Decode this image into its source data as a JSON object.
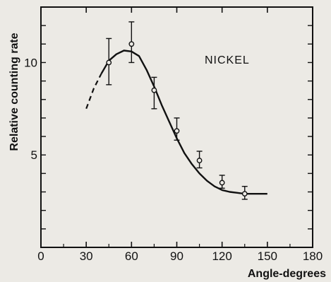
{
  "chart_data": {
    "type": "scatter",
    "title": "",
    "xlabel": "Angle-degrees",
    "ylabel": "Relative counting rate",
    "xlim": [
      0,
      180
    ],
    "ylim": [
      0,
      13
    ],
    "x_ticks": [
      0,
      30,
      60,
      90,
      120,
      150,
      180
    ],
    "x_tick_labels": [
      "0",
      "30",
      "60",
      "90",
      "120",
      "150",
      "180"
    ],
    "y_ticks": [
      5,
      10
    ],
    "y_tick_labels": [
      "5",
      "10"
    ],
    "grid": false,
    "annotation": "NICKEL",
    "series": [
      {
        "marker": "open-circle",
        "points": [
          {
            "x": 45,
            "y": 10.0,
            "err_low": 8.8,
            "err_high": 11.3
          },
          {
            "x": 60,
            "y": 11.0,
            "err_low": 10.0,
            "err_high": 12.2
          },
          {
            "x": 75,
            "y": 8.5,
            "err_low": 7.5,
            "err_high": 9.2
          },
          {
            "x": 90,
            "y": 6.3,
            "err_low": 5.8,
            "err_high": 7.0
          },
          {
            "x": 105,
            "y": 4.7,
            "err_low": 4.3,
            "err_high": 5.2
          },
          {
            "x": 120,
            "y": 3.5,
            "err_low": 3.2,
            "err_high": 3.9
          },
          {
            "x": 135,
            "y": 2.9,
            "err_low": 2.6,
            "err_high": 3.3
          }
        ]
      }
    ],
    "fit_curve": {
      "dashed": [
        [
          30,
          7.5
        ],
        [
          35,
          8.6
        ],
        [
          40,
          9.4
        ]
      ],
      "solid": [
        [
          40,
          9.4
        ],
        [
          45,
          10.1
        ],
        [
          50,
          10.45
        ],
        [
          55,
          10.65
        ],
        [
          60,
          10.6
        ],
        [
          65,
          10.35
        ],
        [
          70,
          9.6
        ],
        [
          75,
          8.7
        ],
        [
          80,
          7.7
        ],
        [
          85,
          6.8
        ],
        [
          90,
          5.9
        ],
        [
          95,
          5.1
        ],
        [
          100,
          4.5
        ],
        [
          105,
          4.0
        ],
        [
          110,
          3.6
        ],
        [
          115,
          3.3
        ],
        [
          120,
          3.1
        ],
        [
          125,
          3.0
        ],
        [
          130,
          2.95
        ],
        [
          135,
          2.9
        ],
        [
          140,
          2.9
        ],
        [
          150,
          2.9
        ]
      ]
    }
  }
}
